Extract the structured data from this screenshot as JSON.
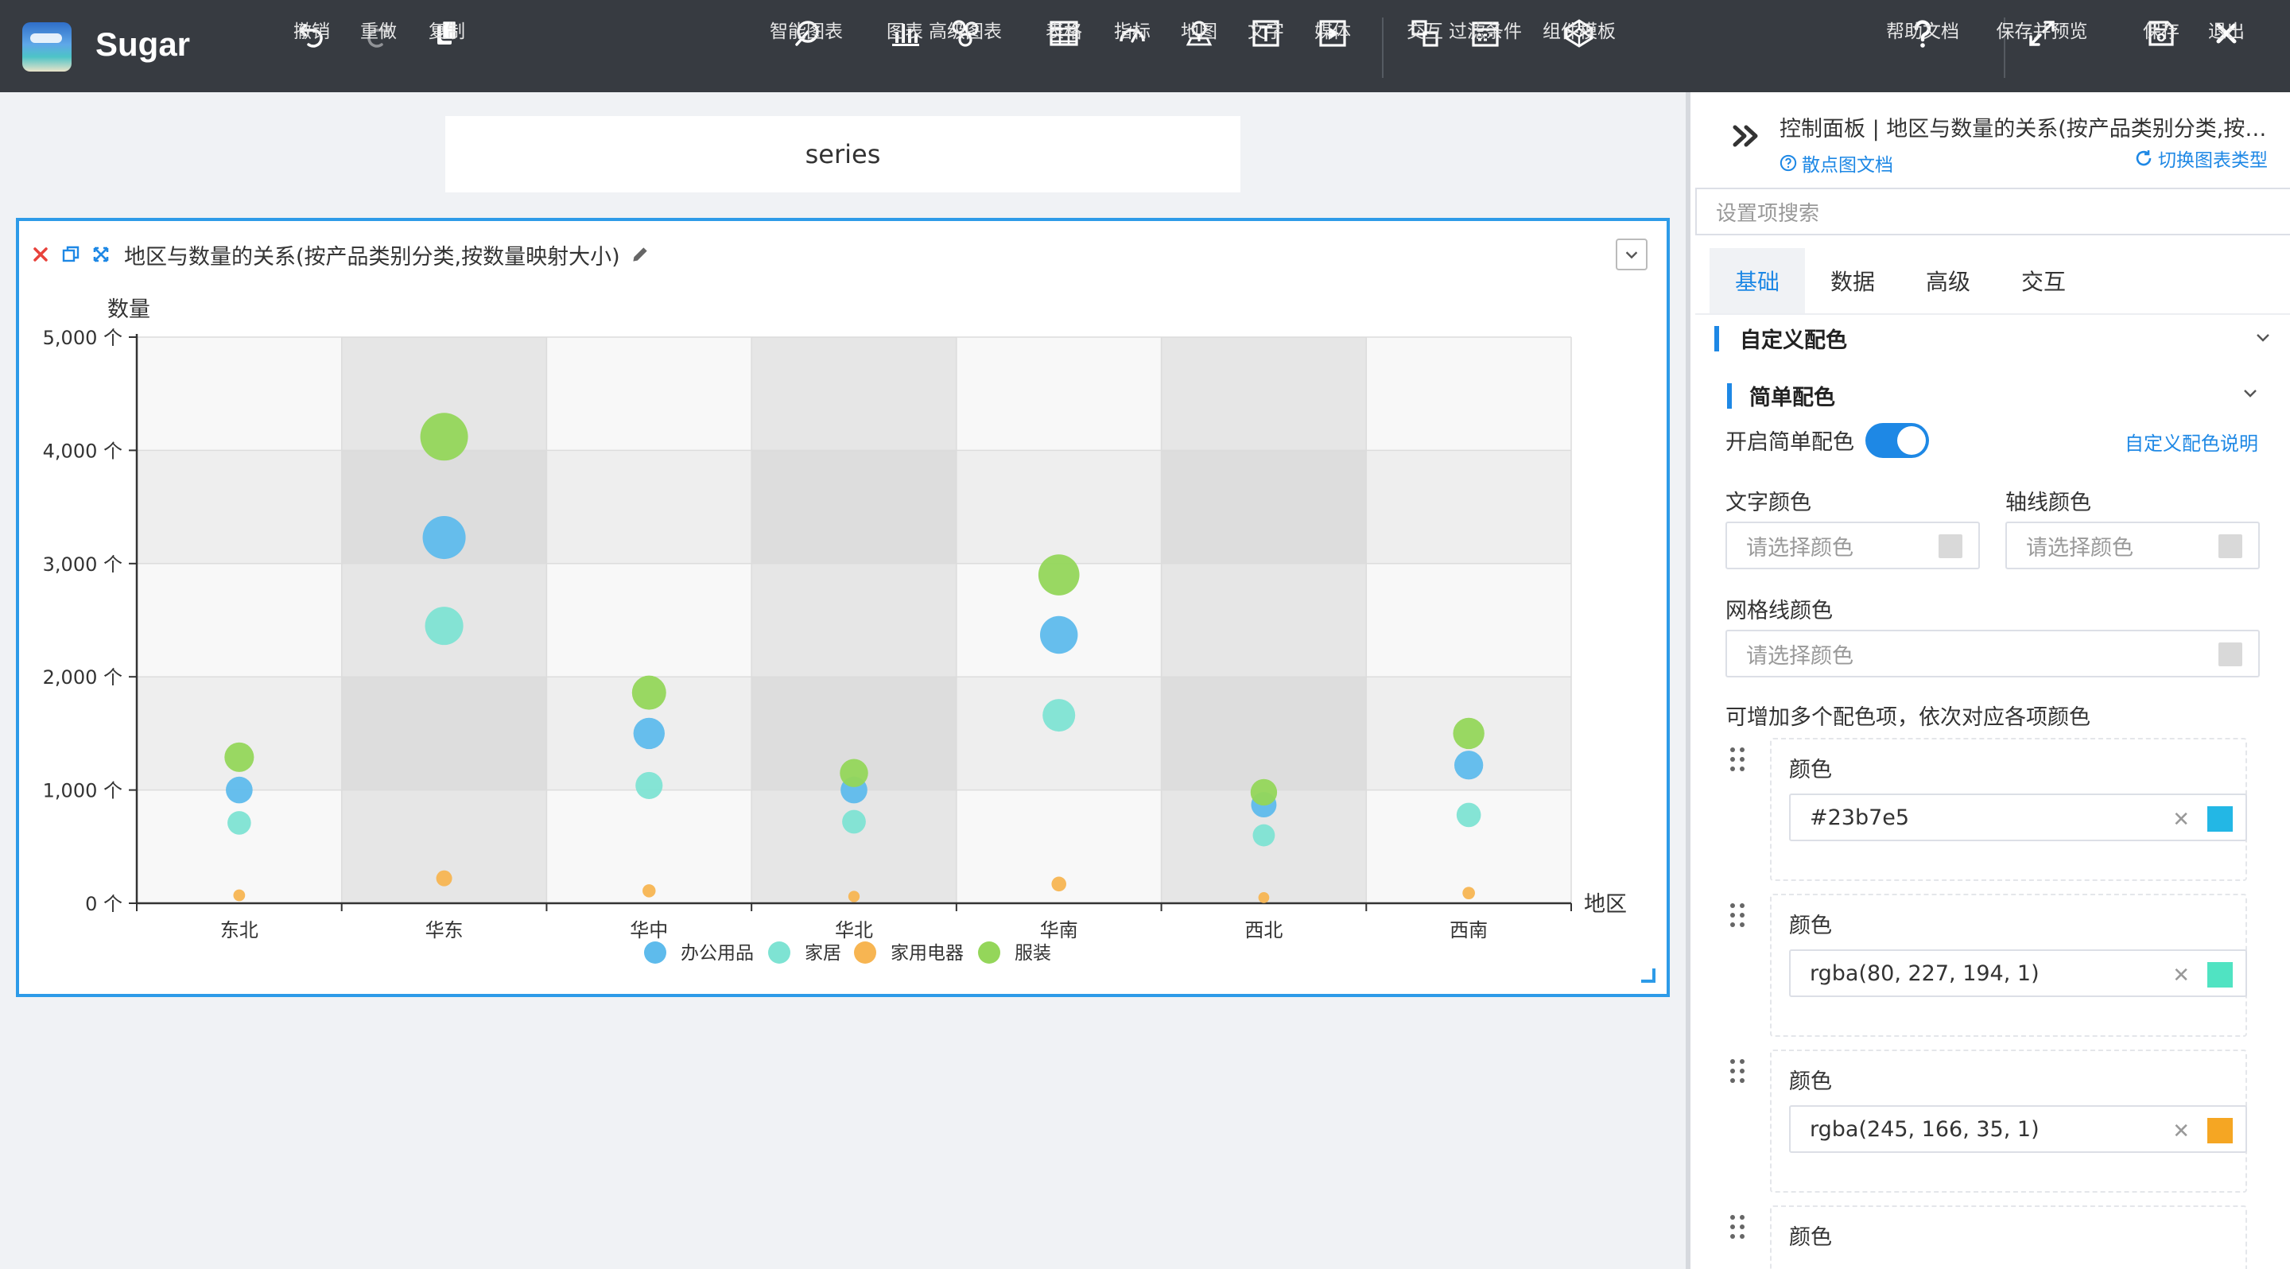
{
  "app": {
    "name": "Sugar"
  },
  "toolbar": {
    "undo": "撤销",
    "redo": "重做",
    "copy": "复制",
    "smart_chart": "智能图表",
    "chart": "图表",
    "advanced_chart": "高级图表",
    "table": "表格",
    "indicator": "指标",
    "map": "地图",
    "text": "文字",
    "media": "媒体",
    "interaction": "交互",
    "filter": "过滤条件",
    "component_template": "组件模板",
    "help": "帮助文档",
    "save_preview": "保存并预览",
    "save": "保存",
    "exit": "退出"
  },
  "canvas": {
    "series_box": "series",
    "card_title": "地区与数量的关系(按产品类别分类,按数量映射大小)"
  },
  "chart_data": {
    "type": "scatter",
    "ylabel": "数量",
    "xlabel": "地区",
    "categories": [
      "东北",
      "华东",
      "华中",
      "华北",
      "华南",
      "西北",
      "西南"
    ],
    "ylim": [
      0,
      5000
    ],
    "yticks": [
      "0 个",
      "1,000 个",
      "2,000 个",
      "3,000 个",
      "4,000 个",
      "5,000 个"
    ],
    "yticks_values": [
      0,
      1000,
      2000,
      3000,
      4000,
      5000
    ],
    "legend_position": "bottom-center",
    "series": [
      {
        "name": "办公用品",
        "color": "#5ebbec",
        "values": [
          1000,
          3230,
          1500,
          1000,
          2370,
          870,
          1220
        ]
      },
      {
        "name": "家居",
        "color": "#7ee3d3",
        "values": [
          710,
          2450,
          1040,
          720,
          1660,
          600,
          780
        ]
      },
      {
        "name": "家用电器",
        "color": "#f7b552",
        "values": [
          70,
          220,
          110,
          60,
          170,
          50,
          90
        ]
      },
      {
        "name": "服装",
        "color": "#94d65a",
        "values": [
          1290,
          4120,
          1860,
          1150,
          2900,
          980,
          1500
        ]
      }
    ]
  },
  "panel": {
    "title": "控制面板 | 地区与数量的关系(按产品类别分类,按数量映射大小)",
    "doc_link": "散点图文档",
    "switch_link": "切换图表类型",
    "search_placeholder": "设置项搜索",
    "tabs": [
      "基础",
      "数据",
      "高级",
      "交互"
    ],
    "section_custom_color": "自定义配色",
    "section_simple_color": "简单配色",
    "enable_simple_color": "开启简单配色",
    "custom_color_help": "自定义配色说明",
    "text_color": "文字颜色",
    "axis_color": "轴线颜色",
    "grid_color": "网格线颜色",
    "color_placeholder": "请选择颜色",
    "multi_color_hint": "可增加多个配色项，依次对应各项颜色",
    "color_label": "颜色",
    "color_items": [
      {
        "value": "#23b7e5",
        "swatch": "#23b7e5"
      },
      {
        "value": "rgba(80, 227, 194, 1)",
        "swatch": "#50e3c2"
      },
      {
        "value": "rgba(245, 166, 35, 1)",
        "swatch": "#f5a623"
      }
    ]
  }
}
